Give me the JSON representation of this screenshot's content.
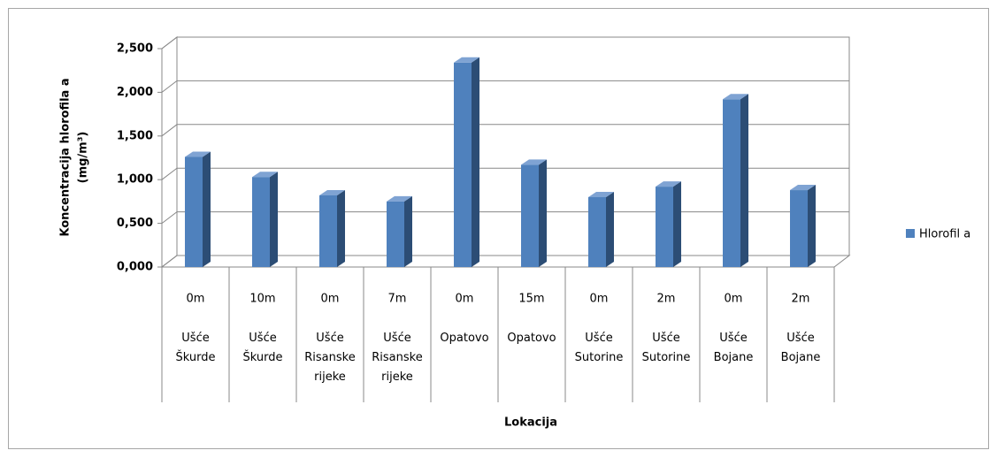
{
  "chart_data": {
    "type": "bar3d",
    "y_label_lines": [
      "Koncentracija hlorofila a",
      "(mg/m³)"
    ],
    "x_label": "Lokacija",
    "categories": [
      "0m",
      "10m",
      "0m",
      "7m",
      "0m",
      "15m",
      "0m",
      "2m",
      "0m",
      "2m"
    ],
    "category_groups": [
      "Ušće Škurde",
      "Ušće Škurde",
      "Ušće Risanske rijeke",
      "Ušće Risanske rijeke",
      "Opatovo",
      "Opatovo",
      "Ušće Sutorine",
      "Ušće Sutorine",
      "Ušće Bojane",
      "Ušće Bojane"
    ],
    "series": [
      {
        "name": "Hlorofil a",
        "color": "#4f81bd",
        "values": [
          1.26,
          1.03,
          0.82,
          0.75,
          2.34,
          1.17,
          0.8,
          0.92,
          1.92,
          0.88
        ]
      }
    ],
    "ylim": [
      0,
      2.5
    ],
    "yticks": [
      {
        "value": 0,
        "label": "0,000"
      },
      {
        "value": 0.5,
        "label": "0,500"
      },
      {
        "value": 1,
        "label": "1,000"
      },
      {
        "value": 1.5,
        "label": "1,500"
      },
      {
        "value": 2,
        "label": "2,000"
      },
      {
        "value": 2.5,
        "label": "2,500"
      }
    ],
    "grid": true,
    "legend": "right"
  }
}
